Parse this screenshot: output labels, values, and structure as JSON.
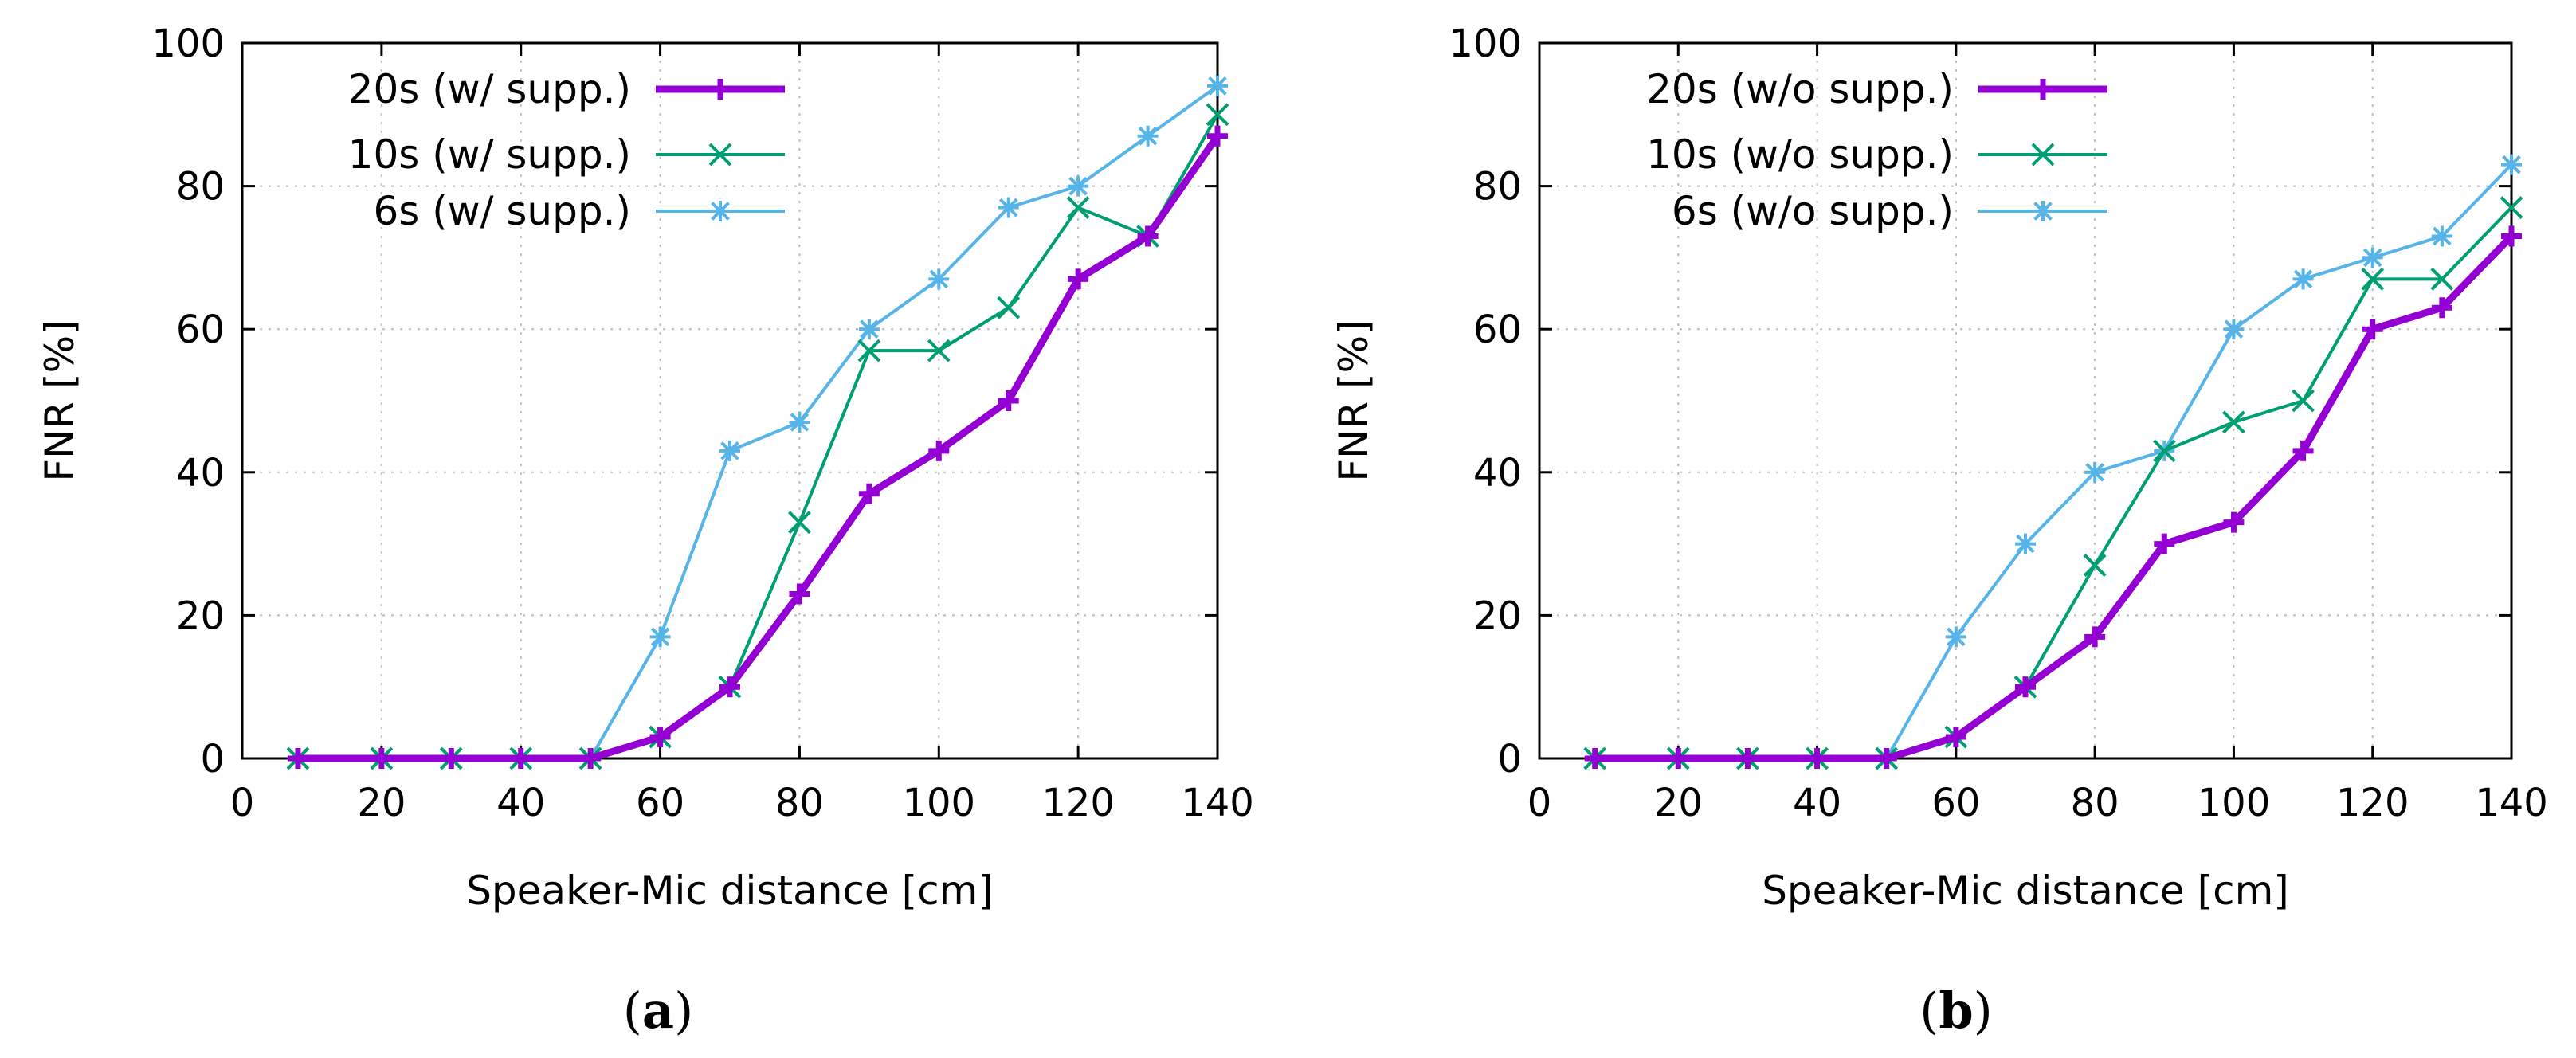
{
  "colors": {
    "series_20s": "#9400D3",
    "series_10s": "#009E73",
    "series_6s": "#56B4E9",
    "grid": "#bbbbbb",
    "axis": "#000000"
  },
  "chart_data": [
    {
      "type": "line",
      "caption_letter": "a",
      "xlabel": "Speaker-Mic distance [cm]",
      "ylabel": "FNR [%]",
      "xlim": [
        0,
        140
      ],
      "ylim": [
        0,
        100
      ],
      "xticks": [
        0,
        20,
        40,
        60,
        80,
        100,
        120,
        140
      ],
      "yticks": [
        0,
        20,
        40,
        60,
        80,
        100
      ],
      "xtick_labels": [
        "0",
        "20",
        "40",
        "60",
        "80",
        "100",
        "120",
        "140"
      ],
      "ytick_labels": [
        "0",
        "20",
        "40",
        "60",
        "80",
        "100"
      ],
      "grid": true,
      "legend_position": "top-left",
      "x": [
        8,
        20,
        30,
        40,
        50,
        60,
        70,
        80,
        90,
        100,
        110,
        120,
        130,
        140
      ],
      "series": [
        {
          "key": "s20",
          "name": "20s (w/ supp.)",
          "color_key": "series_20s",
          "marker": "plus",
          "bold": true,
          "values": [
            0,
            0,
            0,
            0,
            0,
            3,
            10,
            23,
            37,
            43,
            50,
            67,
            73,
            87
          ]
        },
        {
          "key": "s10",
          "name": "10s (w/ supp.)",
          "color_key": "series_10s",
          "marker": "cross",
          "bold": false,
          "values": [
            0,
            0,
            0,
            0,
            0,
            3,
            10,
            33,
            57,
            57,
            63,
            77,
            73,
            90
          ]
        },
        {
          "key": "s6",
          "name": "6s (w/ supp.)",
          "color_key": "series_6s",
          "marker": "star",
          "bold": false,
          "values": [
            0,
            0,
            0,
            0,
            0,
            17,
            43,
            47,
            60,
            67,
            77,
            80,
            87,
            94
          ]
        }
      ]
    },
    {
      "type": "line",
      "caption_letter": "b",
      "xlabel": "Speaker-Mic distance [cm]",
      "ylabel": "FNR [%]",
      "xlim": [
        0,
        140
      ],
      "ylim": [
        0,
        100
      ],
      "xticks": [
        0,
        20,
        40,
        60,
        80,
        100,
        120,
        140
      ],
      "yticks": [
        0,
        20,
        40,
        60,
        80,
        100
      ],
      "xtick_labels": [
        "0",
        "20",
        "40",
        "60",
        "80",
        "100",
        "120",
        "140"
      ],
      "ytick_labels": [
        "0",
        "20",
        "40",
        "60",
        "80",
        "100"
      ],
      "grid": true,
      "legend_position": "top-left",
      "x": [
        8,
        20,
        30,
        40,
        50,
        60,
        70,
        80,
        90,
        100,
        110,
        120,
        130,
        140
      ],
      "series": [
        {
          "key": "s20",
          "name": "20s (w/o supp.)",
          "color_key": "series_20s",
          "marker": "plus",
          "bold": true,
          "values": [
            0,
            0,
            0,
            0,
            0,
            3,
            10,
            17,
            30,
            33,
            43,
            60,
            63,
            73
          ]
        },
        {
          "key": "s10",
          "name": "10s (w/o supp.)",
          "color_key": "series_10s",
          "marker": "cross",
          "bold": false,
          "values": [
            0,
            0,
            0,
            0,
            0,
            3,
            10,
            27,
            43,
            47,
            50,
            67,
            67,
            77
          ]
        },
        {
          "key": "s6",
          "name": "6s (w/o supp.)",
          "color_key": "series_6s",
          "marker": "star",
          "bold": false,
          "values": [
            0,
            0,
            0,
            0,
            0,
            17,
            30,
            40,
            43,
            60,
            67,
            70,
            73,
            83
          ]
        }
      ]
    }
  ]
}
